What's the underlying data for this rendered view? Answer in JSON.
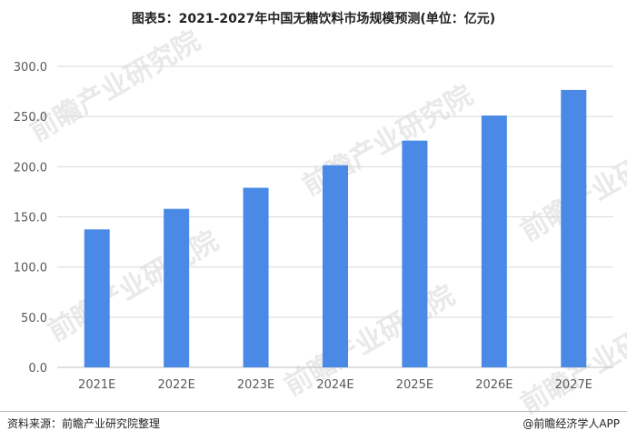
{
  "title": "图表5：2021-2027年中国无糖饮料市场规模预测(单位：亿元)",
  "source": "资料来源：前瞻产业研究院整理",
  "credit": "@前瞻经济学人APP",
  "watermark": "前瞻产业研究院",
  "colors": {
    "bar": "#4a8ae6",
    "grid": "#d9d9d9",
    "axis": "#bfbfbf"
  },
  "chart_data": {
    "type": "bar",
    "title": "图表5：2021-2027年中国无糖饮料市场规模预测(单位：亿元)",
    "categories": [
      "2021E",
      "2022E",
      "2023E",
      "2024E",
      "2025E",
      "2026E",
      "2027E"
    ],
    "values": [
      137.5,
      158,
      179,
      201.5,
      226,
      251,
      276.5
    ],
    "ylim": [
      0,
      300
    ],
    "yticks": [
      "0.0",
      "50.0",
      "100.0",
      "150.0",
      "200.0",
      "250.0",
      "300.0"
    ],
    "grid": true
  }
}
